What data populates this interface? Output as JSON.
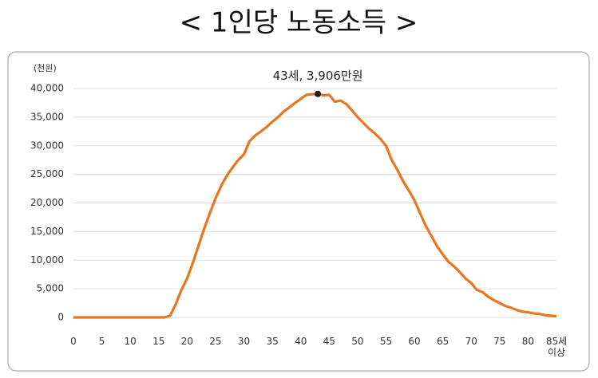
{
  "chart_data": {
    "type": "line",
    "title": "< 1인당 노동소득 >",
    "y_unit": "(천원)",
    "highlight": {
      "x": 43,
      "value": 39060,
      "label": "43세, 3,906만원",
      "color": "#1a1a1a"
    },
    "x": [
      0,
      1,
      2,
      3,
      4,
      5,
      6,
      7,
      8,
      9,
      10,
      11,
      12,
      13,
      14,
      15,
      16,
      17,
      18,
      19,
      20,
      21,
      22,
      23,
      24,
      25,
      26,
      27,
      28,
      29,
      30,
      31,
      32,
      33,
      34,
      35,
      36,
      37,
      38,
      39,
      40,
      41,
      42,
      43,
      44,
      45,
      46,
      47,
      48,
      49,
      50,
      51,
      52,
      53,
      54,
      55,
      56,
      57,
      58,
      59,
      60,
      61,
      62,
      63,
      64,
      65,
      66,
      67,
      68,
      69,
      70,
      71,
      72,
      73,
      74,
      75,
      76,
      77,
      78,
      79,
      80,
      81,
      82,
      83,
      84,
      85
    ],
    "series": [
      {
        "name": "1인당 노동소득",
        "color": "#e8761e",
        "values": [
          0,
          0,
          0,
          0,
          0,
          0,
          0,
          0,
          0,
          0,
          0,
          0,
          0,
          0,
          0,
          0,
          0,
          300,
          2300,
          4800,
          6800,
          9500,
          12500,
          15500,
          18200,
          20800,
          23000,
          24800,
          26200,
          27500,
          28500,
          30800,
          31800,
          32500,
          33300,
          34200,
          35000,
          36000,
          36700,
          37500,
          38200,
          38900,
          39000,
          39060,
          38800,
          38900,
          37700,
          37900,
          37300,
          36200,
          35000,
          34000,
          33000,
          32200,
          31200,
          30000,
          27500,
          25800,
          23800,
          22200,
          20500,
          18200,
          16000,
          14200,
          12400,
          11000,
          9700,
          8900,
          7900,
          6800,
          6000,
          4800,
          4400,
          3600,
          3000,
          2500,
          2000,
          1700,
          1300,
          1000,
          900,
          700,
          600,
          400,
          300,
          200
        ]
      }
    ],
    "xlim": [
      0,
      85
    ],
    "xticks": [
      0,
      5,
      10,
      15,
      20,
      25,
      30,
      35,
      40,
      45,
      50,
      55,
      60,
      65,
      70,
      75,
      80,
      {
        "value": 85,
        "label": "85세\n이상"
      }
    ],
    "ylim": [
      0,
      40000
    ],
    "yticks": [
      {
        "value": 0,
        "label": "0"
      },
      {
        "value": 5000,
        "label": "5,000"
      },
      {
        "value": 10000,
        "label": "10,000"
      },
      {
        "value": 15000,
        "label": "15,000"
      },
      {
        "value": 20000,
        "label": "20,000"
      },
      {
        "value": 25000,
        "label": "25,000"
      },
      {
        "value": 30000,
        "label": "30,000"
      },
      {
        "value": 35000,
        "label": "35,000"
      },
      {
        "value": 40000,
        "label": "40,000"
      }
    ],
    "grid": true
  }
}
